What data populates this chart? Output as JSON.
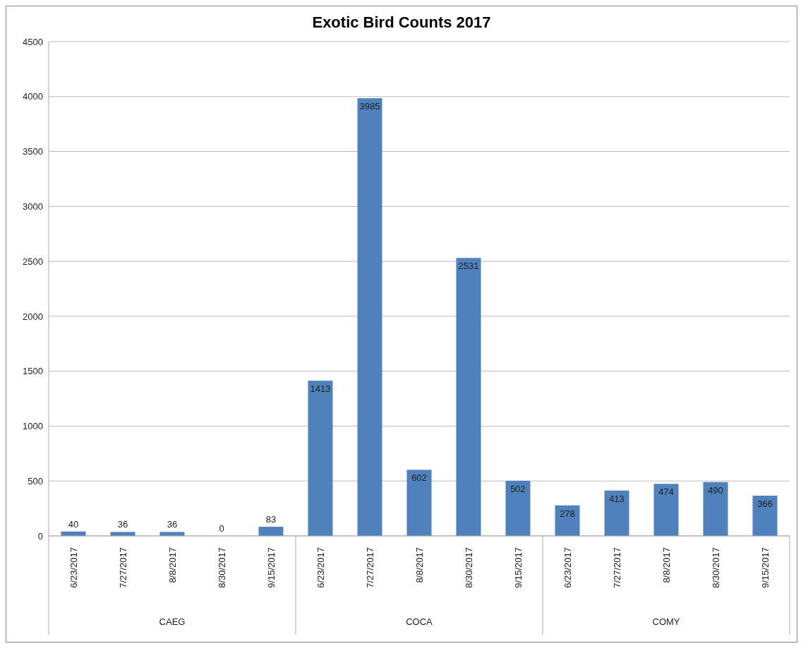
{
  "chart_data": {
    "type": "bar",
    "title": "Exotic Bird Counts 2017",
    "categories": [
      "6/23/2017",
      "7/27/2017",
      "8/8/2017",
      "8/30/2017",
      "9/15/2017",
      "6/23/2017",
      "7/27/2017",
      "8/8/2017",
      "8/30/2017",
      "9/15/2017",
      "6/23/2017",
      "7/27/2017",
      "8/8/2017",
      "8/30/2017",
      "9/15/2017"
    ],
    "values": [
      40,
      36,
      36,
      0,
      83,
      1413,
      3985,
      602,
      2531,
      502,
      278,
      413,
      474,
      490,
      366
    ],
    "color": "#4f81bd",
    "annotations": [
      "CAEG",
      "COCA",
      "COMY"
    ],
    "ylim": [
      0,
      4500
    ],
    "yticks": [
      0,
      500,
      1000,
      1500,
      2000,
      2500,
      3000,
      3500,
      4000,
      4500
    ],
    "grid": "y",
    "data_labels": true,
    "legend": false
  }
}
